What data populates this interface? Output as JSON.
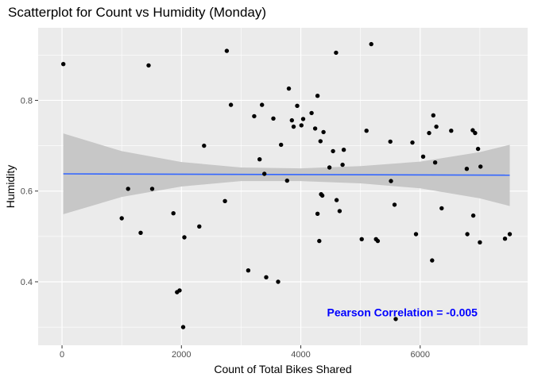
{
  "chart_data": {
    "type": "scatter",
    "title": "Scatterplot for Count vs Humidity (Monday)",
    "xlabel": "Count of Total Bikes Shared",
    "ylabel": "Humidity",
    "xlim": [
      -400,
      7800
    ],
    "ylim": [
      0.26,
      0.96
    ],
    "x_ticks": [
      0,
      2000,
      4000,
      6000
    ],
    "x_tick_labels": [
      "0",
      "2000",
      "4000",
      "6000"
    ],
    "y_ticks": [
      0.4,
      0.6,
      0.8
    ],
    "y_tick_labels": [
      "0.4",
      "0.6",
      "0.8"
    ],
    "grid": true,
    "background": "#ebebeb",
    "point_color": "#000000",
    "points": [
      [
        22,
        0.88
      ],
      [
        1000,
        0.54
      ],
      [
        1107,
        0.605
      ],
      [
        1317,
        0.508
      ],
      [
        1450,
        0.877
      ],
      [
        1510,
        0.605
      ],
      [
        1865,
        0.551
      ],
      [
        1927,
        0.377
      ],
      [
        1970,
        0.381
      ],
      [
        2030,
        0.3
      ],
      [
        2050,
        0.498
      ],
      [
        2300,
        0.522
      ],
      [
        2380,
        0.7
      ],
      [
        2730,
        0.578
      ],
      [
        2760,
        0.909
      ],
      [
        2830,
        0.79
      ],
      [
        3120,
        0.425
      ],
      [
        3220,
        0.765
      ],
      [
        3310,
        0.67
      ],
      [
        3350,
        0.79
      ],
      [
        3390,
        0.638
      ],
      [
        3420,
        0.41
      ],
      [
        3540,
        0.76
      ],
      [
        3620,
        0.4
      ],
      [
        3670,
        0.702
      ],
      [
        3770,
        0.623
      ],
      [
        3800,
        0.826
      ],
      [
        3850,
        0.756
      ],
      [
        3880,
        0.742
      ],
      [
        3940,
        0.788
      ],
      [
        4010,
        0.745
      ],
      [
        4040,
        0.759
      ],
      [
        4180,
        0.772
      ],
      [
        4240,
        0.738
      ],
      [
        4280,
        0.81
      ],
      [
        4280,
        0.55
      ],
      [
        4310,
        0.49
      ],
      [
        4330,
        0.71
      ],
      [
        4340,
        0.593
      ],
      [
        4360,
        0.59
      ],
      [
        4380,
        0.73
      ],
      [
        4480,
        0.652
      ],
      [
        4540,
        0.688
      ],
      [
        4590,
        0.905
      ],
      [
        4600,
        0.58
      ],
      [
        4650,
        0.556
      ],
      [
        4700,
        0.658
      ],
      [
        4720,
        0.691
      ],
      [
        5020,
        0.494
      ],
      [
        5100,
        0.733
      ],
      [
        5180,
        0.924
      ],
      [
        5260,
        0.494
      ],
      [
        5290,
        0.49
      ],
      [
        5500,
        0.709
      ],
      [
        5510,
        0.622
      ],
      [
        5570,
        0.57
      ],
      [
        5590,
        0.318
      ],
      [
        5870,
        0.707
      ],
      [
        5930,
        0.505
      ],
      [
        6050,
        0.676
      ],
      [
        6150,
        0.728
      ],
      [
        6200,
        0.447
      ],
      [
        6220,
        0.767
      ],
      [
        6250,
        0.663
      ],
      [
        6270,
        0.742
      ],
      [
        6360,
        0.562
      ],
      [
        6520,
        0.733
      ],
      [
        6780,
        0.649
      ],
      [
        6790,
        0.505
      ],
      [
        6880,
        0.734
      ],
      [
        6890,
        0.546
      ],
      [
        6920,
        0.728
      ],
      [
        6970,
        0.693
      ],
      [
        7000,
        0.487
      ],
      [
        7010,
        0.654
      ],
      [
        7420,
        0.495
      ],
      [
        7500,
        0.505
      ]
    ],
    "trend_line": {
      "type": "lm",
      "color": "#3366ff",
      "x": [
        22,
        7500
      ],
      "y": [
        0.638,
        0.635
      ]
    },
    "confidence_band": {
      "color": "#c7c7c7",
      "x": [
        22,
        1000,
        2000,
        3000,
        4000,
        5000,
        6000,
        7000,
        7500
      ],
      "lower": [
        0.549,
        0.587,
        0.61,
        0.622,
        0.622,
        0.617,
        0.606,
        0.584,
        0.567
      ],
      "upper": [
        0.727,
        0.688,
        0.664,
        0.652,
        0.65,
        0.655,
        0.665,
        0.686,
        0.702
      ]
    },
    "annotations": [
      {
        "text": "Pearson Correlation = -0.005",
        "x": 5700,
        "y": 0.333,
        "color": "#0000ff"
      }
    ]
  }
}
